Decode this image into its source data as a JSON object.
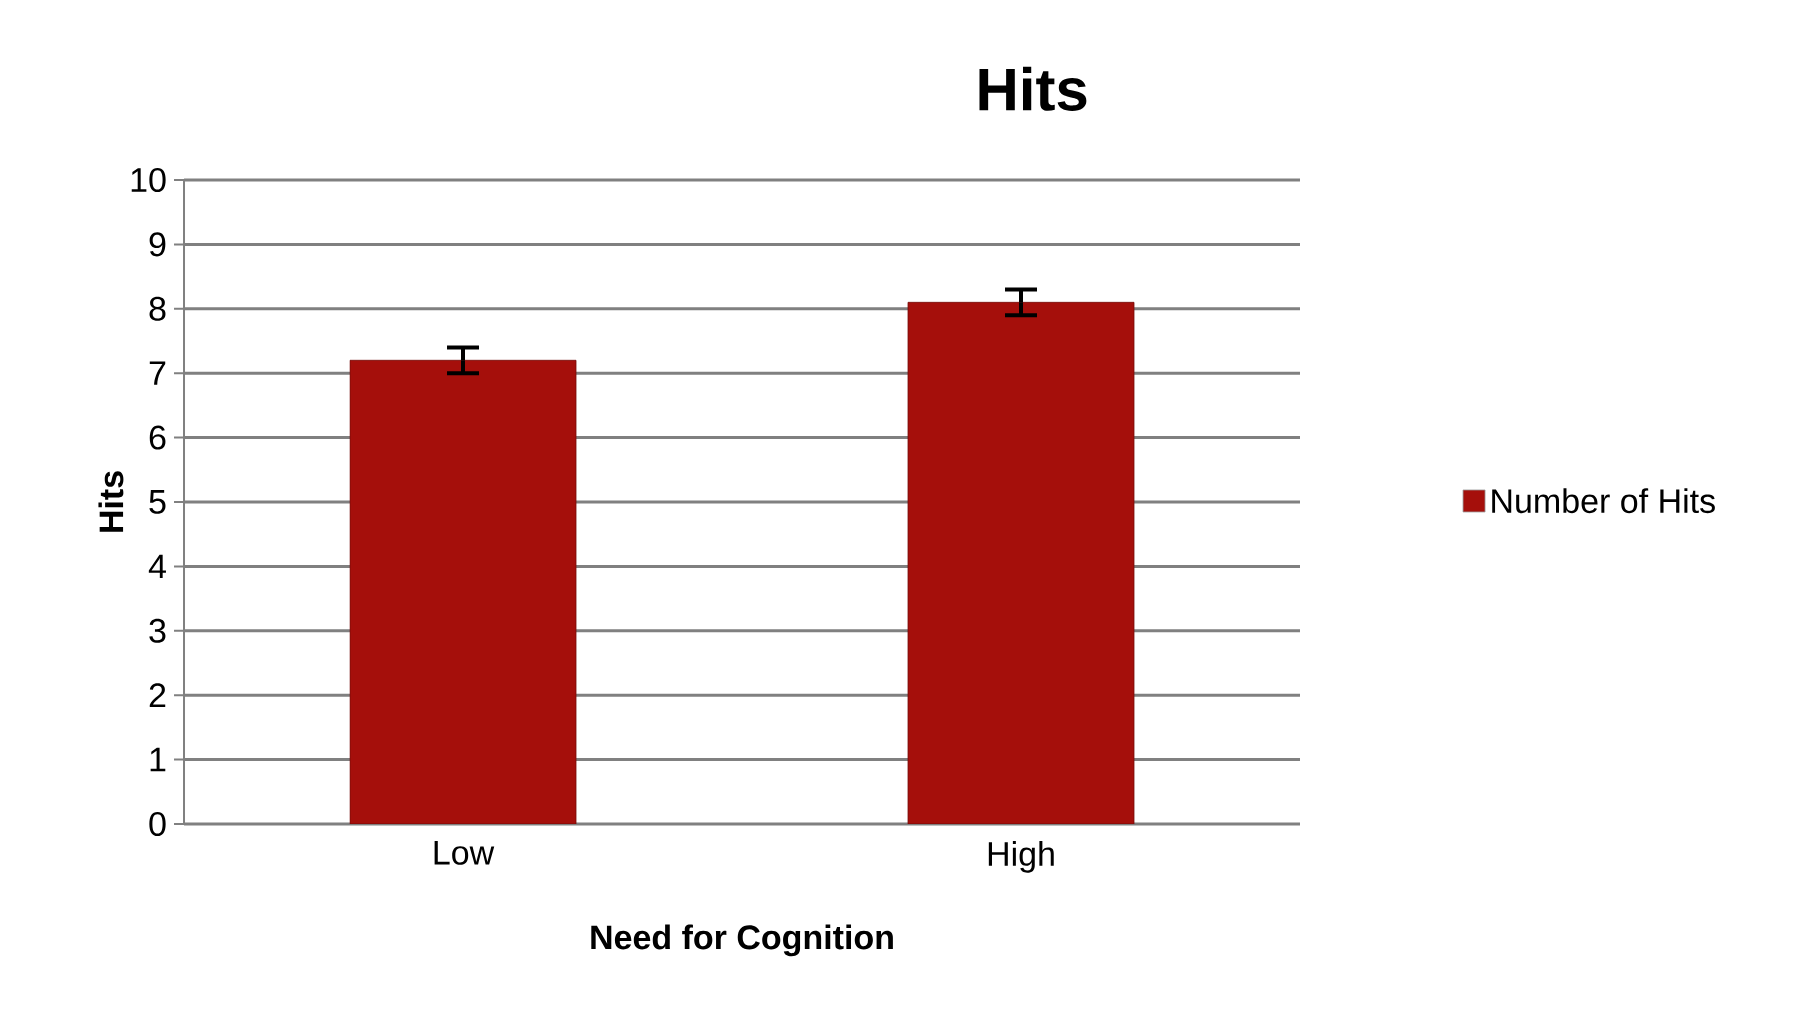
{
  "chart_data": {
    "type": "bar",
    "title": "Hits",
    "xlabel": "Need for Cognition",
    "ylabel": "Hits",
    "categories": [
      "Low",
      "High"
    ],
    "series": [
      {
        "name": "Number of Hits",
        "color": "#a50f0b",
        "values": [
          7.2,
          8.1
        ],
        "errors": [
          0.2,
          0.2
        ]
      }
    ],
    "ylim": [
      0,
      10
    ],
    "yticks": [
      0,
      1,
      2,
      3,
      4,
      5,
      6,
      7,
      8,
      9,
      10
    ],
    "grid": "y",
    "legend": "right"
  }
}
